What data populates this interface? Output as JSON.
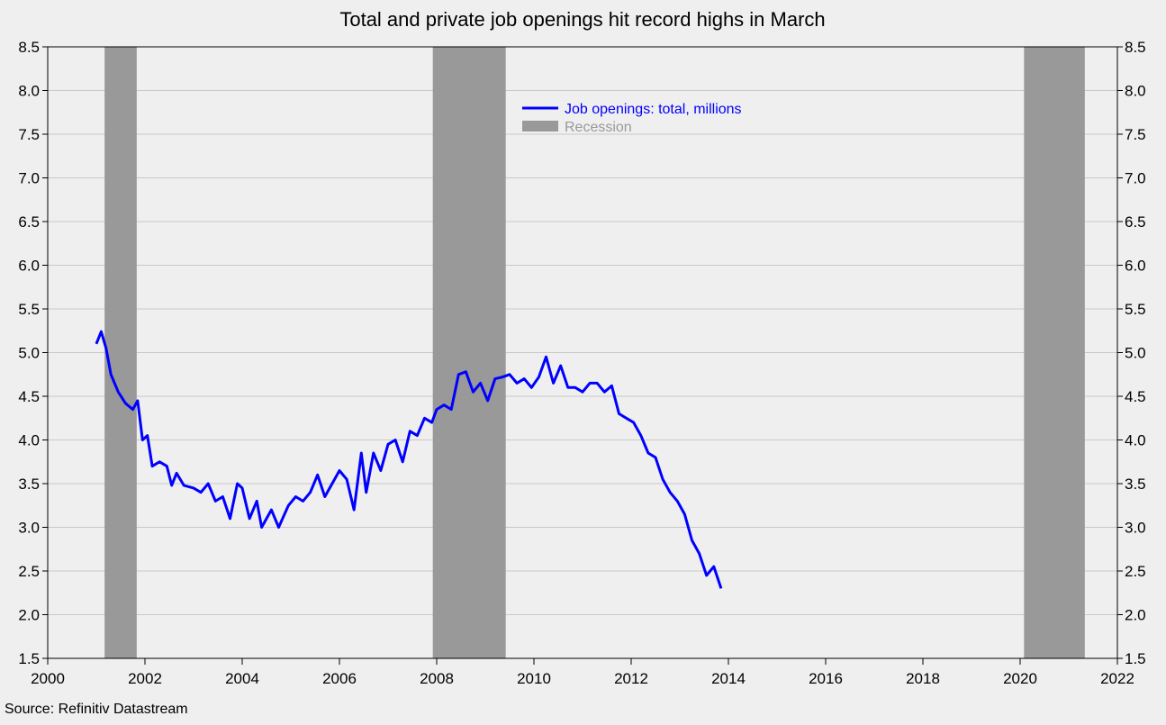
{
  "chart_data": {
    "type": "line",
    "title": "Total and private job openings hit record highs in March",
    "source": "Source: Refinitiv Datastream",
    "xlabel": "",
    "ylabel": "",
    "xlim": [
      2000,
      2022
    ],
    "ylim": [
      1.5,
      8.5
    ],
    "x_ticks": [
      "2000",
      "2002",
      "2004",
      "2006",
      "2008",
      "2010",
      "2012",
      "2014",
      "2016",
      "2018",
      "2020",
      "2022"
    ],
    "y_ticks": [
      "1.5",
      "2.0",
      "2.5",
      "3.0",
      "3.5",
      "4.0",
      "4.5",
      "5.0",
      "5.5",
      "6.0",
      "6.5",
      "7.0",
      "7.5",
      "8.0",
      "8.5"
    ],
    "grid": "horizontal",
    "legend_position": "top-center",
    "recessions": [
      {
        "start": 2001.17,
        "end": 2001.83
      },
      {
        "start": 2007.92,
        "end": 2009.42
      },
      {
        "start": 2020.08,
        "end": 2021.33
      }
    ],
    "recession_label": "Recession",
    "recession_color": "#999999",
    "series": [
      {
        "name": "Job openings: total, millions",
        "color": "#0000ff",
        "points": [
          [
            2001.0,
            5.1
          ],
          [
            2001.1,
            5.24
          ],
          [
            2001.2,
            5.05
          ],
          [
            2001.3,
            4.75
          ],
          [
            2001.45,
            4.55
          ],
          [
            2001.6,
            4.42
          ],
          [
            2001.75,
            4.35
          ],
          [
            2001.85,
            4.45
          ],
          [
            2001.95,
            4.0
          ],
          [
            2002.05,
            4.05
          ],
          [
            2002.15,
            3.7
          ],
          [
            2002.3,
            3.75
          ],
          [
            2002.45,
            3.7
          ],
          [
            2002.55,
            3.48
          ],
          [
            2002.65,
            3.62
          ],
          [
            2002.8,
            3.48
          ],
          [
            2003.0,
            3.45
          ],
          [
            2003.15,
            3.4
          ],
          [
            2003.3,
            3.5
          ],
          [
            2003.45,
            3.3
          ],
          [
            2003.6,
            3.35
          ],
          [
            2003.75,
            3.1
          ],
          [
            2003.9,
            3.5
          ],
          [
            2004.0,
            3.45
          ],
          [
            2004.15,
            3.1
          ],
          [
            2004.3,
            3.3
          ],
          [
            2004.4,
            3.0
          ],
          [
            2004.6,
            3.2
          ],
          [
            2004.75,
            3.0
          ],
          [
            2004.95,
            3.25
          ],
          [
            2005.1,
            3.35
          ],
          [
            2005.25,
            3.3
          ],
          [
            2005.4,
            3.4
          ],
          [
            2005.55,
            3.6
          ],
          [
            2005.7,
            3.35
          ],
          [
            2005.85,
            3.5
          ],
          [
            2006.0,
            3.65
          ],
          [
            2006.15,
            3.55
          ],
          [
            2006.3,
            3.2
          ],
          [
            2006.45,
            3.85
          ],
          [
            2006.55,
            3.4
          ],
          [
            2006.7,
            3.85
          ],
          [
            2006.85,
            3.65
          ],
          [
            2007.0,
            3.95
          ],
          [
            2007.15,
            4.0
          ],
          [
            2007.3,
            3.75
          ],
          [
            2007.45,
            4.1
          ],
          [
            2007.6,
            4.05
          ],
          [
            2007.75,
            4.25
          ],
          [
            2007.9,
            4.2
          ],
          [
            2008.0,
            4.35
          ],
          [
            2008.15,
            4.4
          ],
          [
            2008.3,
            4.35
          ],
          [
            2008.45,
            4.75
          ],
          [
            2008.6,
            4.78
          ],
          [
            2008.75,
            4.55
          ],
          [
            2008.9,
            4.65
          ],
          [
            2009.05,
            4.45
          ],
          [
            2009.2,
            4.7
          ],
          [
            2009.35,
            4.72
          ],
          [
            2009.5,
            4.75
          ],
          [
            2009.65,
            4.65
          ],
          [
            2009.8,
            4.7
          ],
          [
            2009.95,
            4.6
          ],
          [
            2010.1,
            4.72
          ],
          [
            2010.25,
            4.95
          ],
          [
            2010.4,
            4.65
          ],
          [
            2010.55,
            4.85
          ],
          [
            2010.7,
            4.6
          ],
          [
            2010.85,
            4.6
          ],
          [
            2011.0,
            4.55
          ],
          [
            2011.15,
            4.65
          ],
          [
            2011.3,
            4.65
          ],
          [
            2011.45,
            4.55
          ],
          [
            2011.6,
            4.62
          ],
          [
            2011.75,
            4.3
          ],
          [
            2011.9,
            4.25
          ],
          [
            2012.05,
            4.2
          ],
          [
            2012.2,
            4.05
          ],
          [
            2012.35,
            3.85
          ],
          [
            2012.5,
            3.8
          ],
          [
            2012.65,
            3.55
          ],
          [
            2012.8,
            3.4
          ],
          [
            2012.95,
            3.3
          ],
          [
            2013.1,
            3.15
          ],
          [
            2013.25,
            2.85
          ],
          [
            2013.4,
            2.7
          ],
          [
            2013.55,
            2.45
          ],
          [
            2013.7,
            2.55
          ],
          [
            2013.85,
            2.3
          ]
        ]
      }
    ]
  }
}
